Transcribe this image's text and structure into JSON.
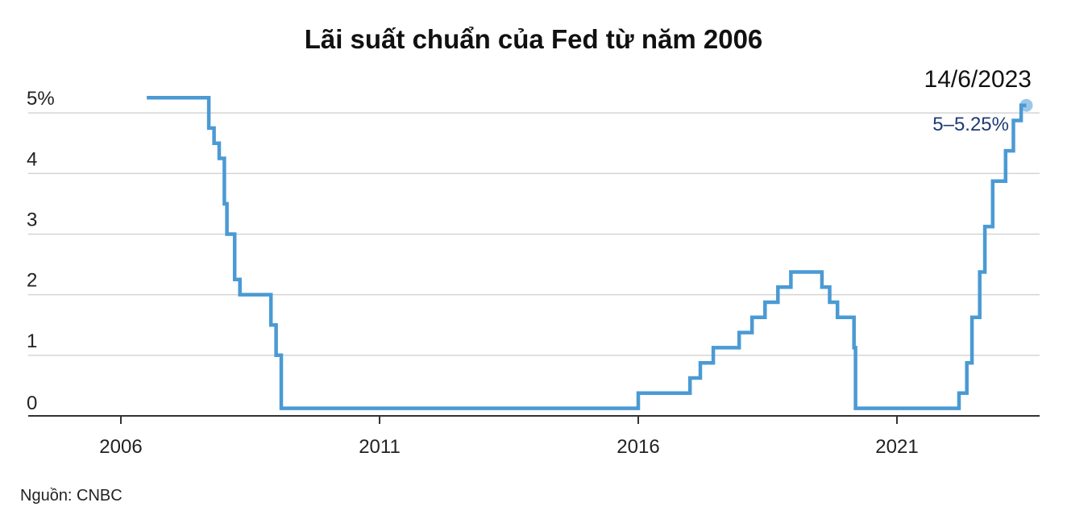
{
  "chart_data": {
    "type": "line",
    "title": "Lãi suất chuẩn của Fed từ năm 2006",
    "source": "Nguồn: CNBC",
    "x_ticks": [
      "2006",
      "2011",
      "2016",
      "2021"
    ],
    "y_ticks": [
      "0",
      "1",
      "2",
      "3",
      "4",
      "5%"
    ],
    "ylim": [
      0,
      5.6
    ],
    "xlim": [
      2004.2,
      2023.7
    ],
    "grid": true,
    "color": "#4a9ad4",
    "series": [
      {
        "step": true,
        "x": [
          2006.5,
          2007.7,
          2007.8,
          2007.9,
          2008.0,
          2008.05,
          2008.2,
          2008.3,
          2008.9,
          2009.0,
          2009.1,
          2016.0,
          2017.0,
          2017.2,
          2017.45,
          2017.95,
          2018.2,
          2018.45,
          2018.7,
          2018.95,
          2019.55,
          2019.7,
          2019.85,
          2020.17,
          2020.2,
          2022.2,
          2022.35,
          2022.45,
          2022.6,
          2022.7,
          2022.85,
          2023.1,
          2023.25,
          2023.4,
          2023.5
        ],
        "y": [
          5.25,
          4.75,
          4.5,
          4.25,
          3.5,
          3.0,
          2.25,
          2.0,
          1.5,
          1.0,
          0.125,
          0.375,
          0.625,
          0.875,
          1.125,
          1.375,
          1.625,
          1.875,
          2.125,
          2.375,
          2.125,
          1.875,
          1.625,
          1.125,
          0.125,
          0.375,
          0.875,
          1.625,
          2.375,
          3.125,
          3.875,
          4.375,
          4.875,
          5.125,
          5.125
        ]
      }
    ],
    "annotation": {
      "date": "14/6/2023",
      "value": "5–5.25%",
      "x": 2023.5,
      "y": 5.125
    }
  }
}
